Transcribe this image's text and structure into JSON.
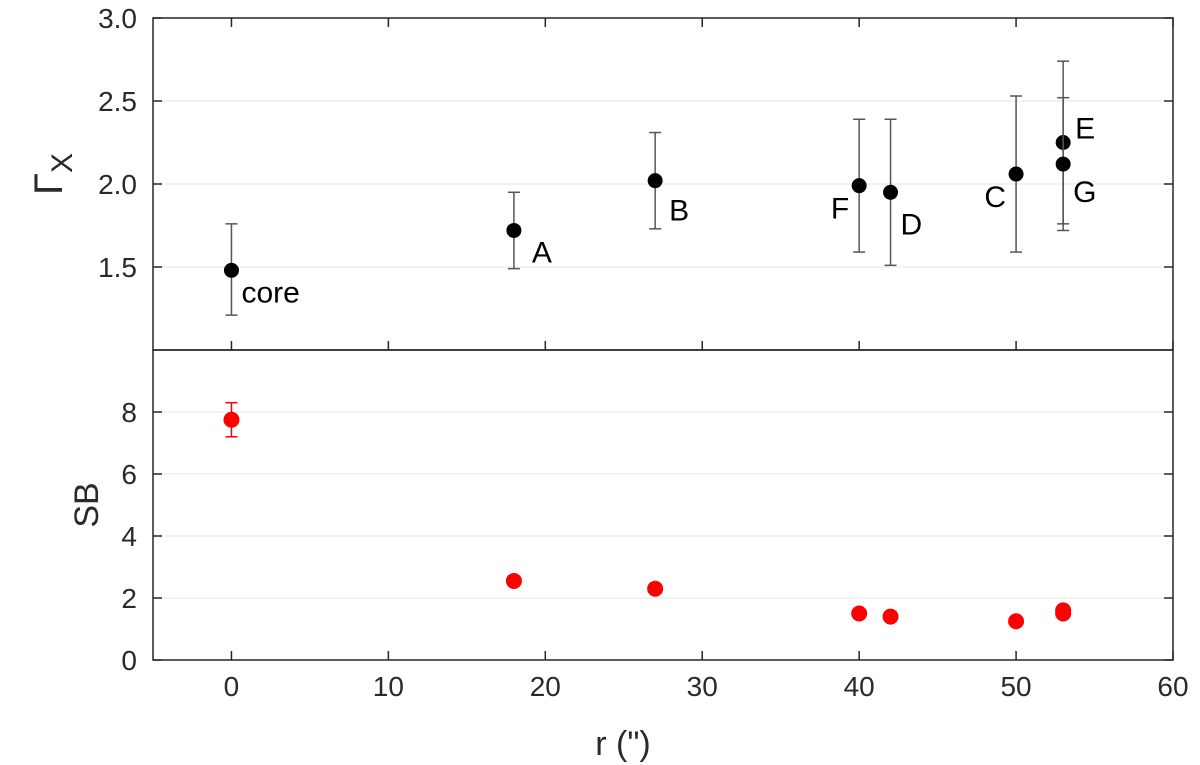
{
  "chart_data": [
    {
      "type": "scatter",
      "panel": "top",
      "ylabel_symbol": "Γ",
      "ylabel_subscript": "X",
      "xlabel": "",
      "xlim": [
        -5,
        60
      ],
      "ylim": [
        1.0,
        3.0
      ],
      "yticks": [
        "1.5",
        "2.0",
        "2.5",
        "3.0"
      ],
      "yticks_values": [
        1.5,
        2.0,
        2.5,
        3.0
      ],
      "grid": true,
      "marker_color": "#000000",
      "errorbar_color": "#555555",
      "series": [
        {
          "name": "Gamma_X",
          "points": [
            {
              "label": "core",
              "x": 0,
              "y": 1.48,
              "ylow": 1.21,
              "yhigh": 1.76,
              "label_pos": "below-right"
            },
            {
              "label": "A",
              "x": 18,
              "y": 1.72,
              "ylow": 1.49,
              "yhigh": 1.95,
              "label_pos": "below-right"
            },
            {
              "label": "B",
              "x": 27,
              "y": 2.02,
              "ylow": 1.73,
              "yhigh": 2.31,
              "label_pos": "below-right"
            },
            {
              "label": "F",
              "x": 40,
              "y": 1.99,
              "ylow": 1.59,
              "yhigh": 2.39,
              "label_pos": "below-left"
            },
            {
              "label": "D",
              "x": 42,
              "y": 1.95,
              "ylow": 1.51,
              "yhigh": 2.39,
              "label_pos": "below-right"
            },
            {
              "label": "C",
              "x": 50,
              "y": 2.06,
              "ylow": 1.59,
              "yhigh": 2.53,
              "label_pos": "below-left"
            },
            {
              "label": "E",
              "x": 53,
              "y": 2.25,
              "ylow": 1.76,
              "yhigh": 2.74,
              "label_pos": "right"
            },
            {
              "label": "G",
              "x": 53,
              "y": 2.12,
              "ylow": 1.72,
              "yhigh": 2.52,
              "label_pos": "below-right"
            }
          ]
        }
      ]
    },
    {
      "type": "scatter",
      "panel": "bottom",
      "ylabel": "SB",
      "xlabel": "r (\")",
      "xlim": [
        -5,
        60
      ],
      "ylim": [
        0,
        10
      ],
      "xticks": [
        "0",
        "10",
        "20",
        "30",
        "40",
        "50",
        "60"
      ],
      "xticks_values": [
        0,
        10,
        20,
        30,
        40,
        50,
        60
      ],
      "yticks": [
        "0",
        "2",
        "4",
        "6",
        "8"
      ],
      "yticks_values": [
        0,
        2,
        4,
        6,
        8
      ],
      "grid": true,
      "marker_color": "#ff0000",
      "series": [
        {
          "name": "SB",
          "points": [
            {
              "x": 0,
              "y": 7.75,
              "ylow": 7.2,
              "yhigh": 8.3
            },
            {
              "x": 18,
              "y": 2.55
            },
            {
              "x": 27,
              "y": 2.3
            },
            {
              "x": 40,
              "y": 1.5
            },
            {
              "x": 42,
              "y": 1.4
            },
            {
              "x": 50,
              "y": 1.25
            },
            {
              "x": 53,
              "y": 1.5
            },
            {
              "x": 53,
              "y": 1.6
            }
          ]
        }
      ]
    }
  ]
}
